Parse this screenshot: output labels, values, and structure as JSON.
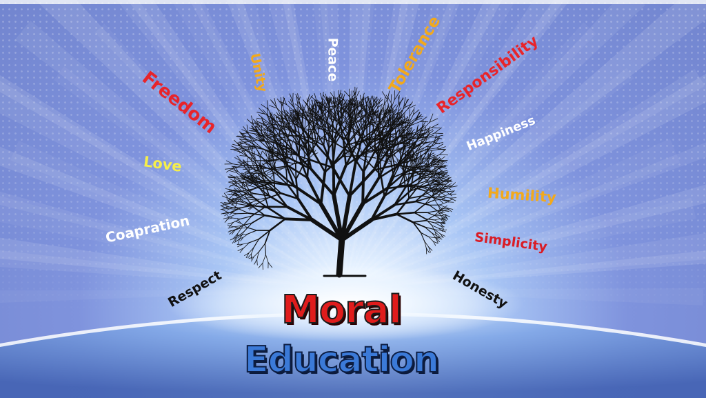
{
  "title": {
    "line1": "Moral",
    "line2": "Education"
  },
  "values": [
    {
      "id": "freedom",
      "text": "Freedom",
      "color": "#e8242a"
    },
    {
      "id": "unity",
      "text": "Unity",
      "color": "#f2a91c"
    },
    {
      "id": "peace",
      "text": "Peace",
      "color": "#ffffff"
    },
    {
      "id": "tolerance",
      "text": "Tolerance",
      "color": "#f2a91c"
    },
    {
      "id": "responsibility",
      "text": "Responsibility",
      "color": "#e8242a"
    },
    {
      "id": "happiness",
      "text": "Happiness",
      "color": "#ffffff"
    },
    {
      "id": "love",
      "text": "Love",
      "color": "#f5ee4c"
    },
    {
      "id": "humility",
      "text": "Humility",
      "color": "#f2a91c"
    },
    {
      "id": "coapration",
      "text": "Coapration",
      "color": "#ffffff"
    },
    {
      "id": "simplicity",
      "text": "Simplicity",
      "color": "#d91c25"
    },
    {
      "id": "respect",
      "text": "Respect",
      "color": "#111111"
    },
    {
      "id": "honesty",
      "text": "Honesty",
      "color": "#111111"
    }
  ],
  "colors": {
    "moral": "#e01c1c",
    "education": "#3b7ad8",
    "background": "#7f8fd6",
    "tree": "#111111"
  },
  "icons": [
    "tree-illustration",
    "earth-horizon",
    "world-map-dots"
  ]
}
